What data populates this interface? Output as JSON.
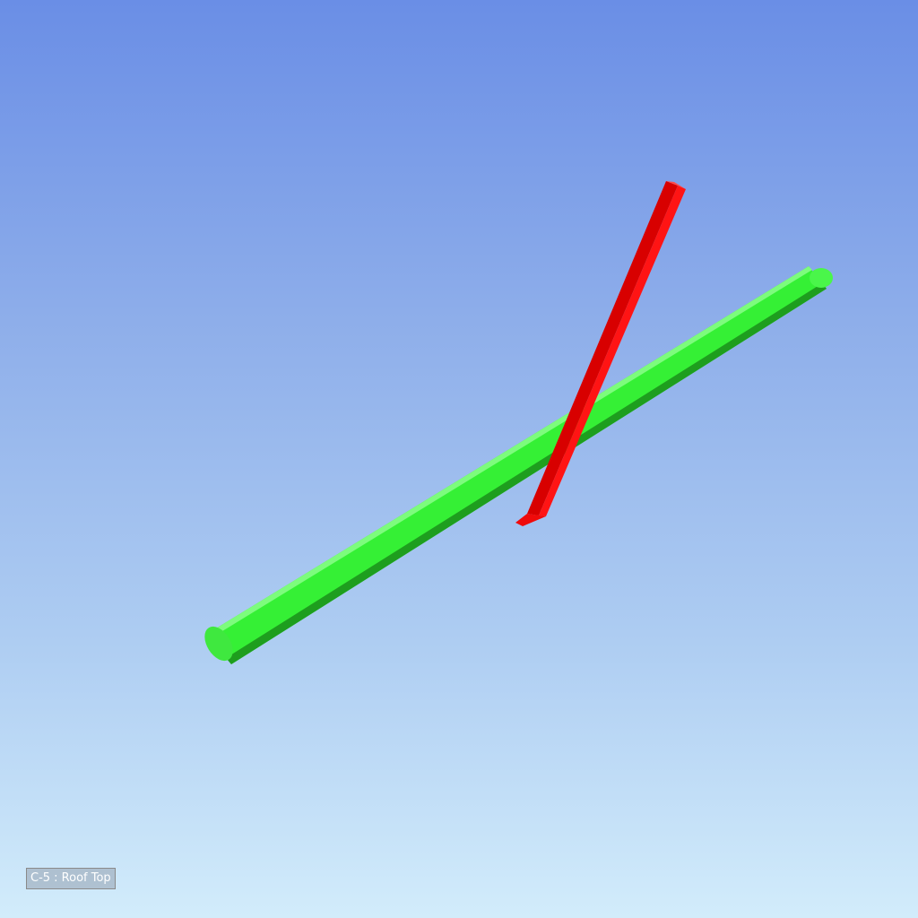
{
  "viewer": {
    "background_top": "#6a8ee6",
    "background_bottom": "#d2ecfb"
  },
  "scene": {
    "objects": [
      {
        "name": "green-cylinder",
        "color": "#33ee33",
        "shape": "cylinder"
      },
      {
        "name": "red-prism",
        "color": "#ff1010",
        "shape": "prism"
      }
    ]
  },
  "overlay": {
    "view_label": "C-5 : Roof Top"
  }
}
